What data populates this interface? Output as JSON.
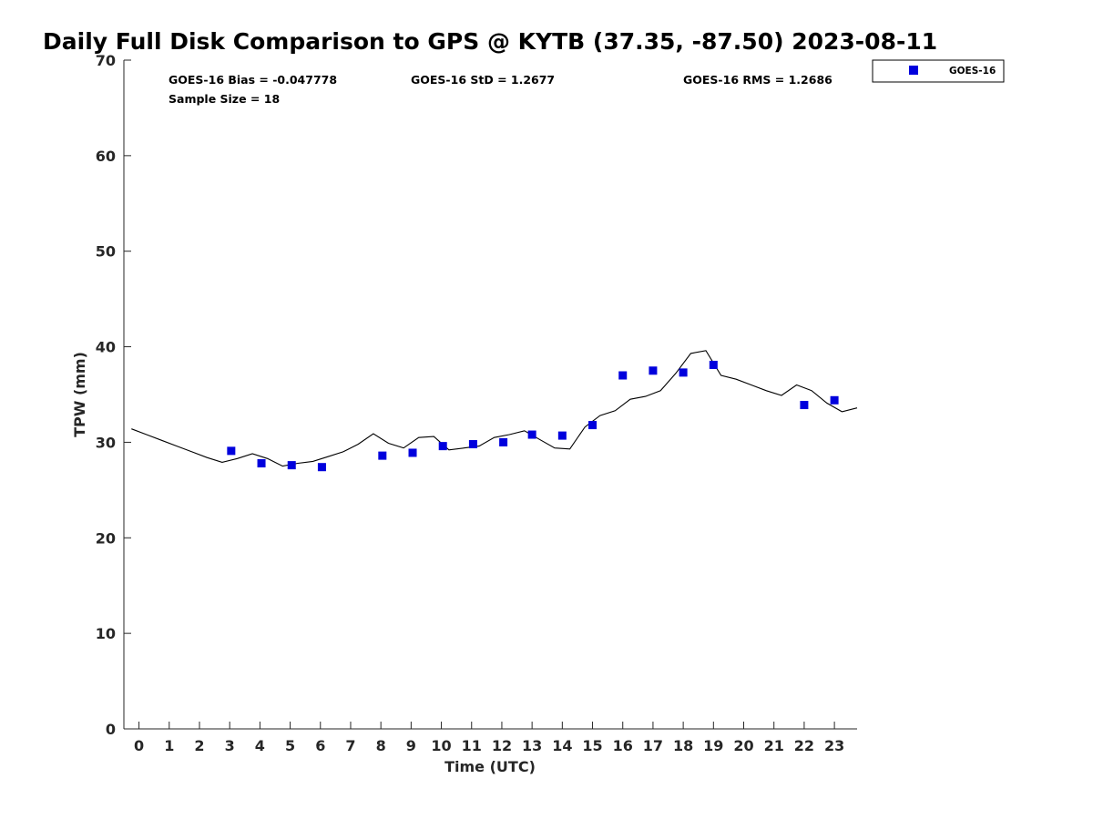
{
  "chart_data": {
    "type": "scatter",
    "title": "Daily Full Disk Comparison to GPS @ KYTB (37.35, -87.50) 2023-08-11",
    "xlabel": "Time (UTC)",
    "ylabel": "TPW (mm)",
    "xlim": [
      -0.5,
      23.75
    ],
    "ylim": [
      0,
      70
    ],
    "x_ticks": [
      0,
      1,
      2,
      3,
      4,
      5,
      6,
      7,
      8,
      9,
      10,
      11,
      12,
      13,
      14,
      15,
      16,
      17,
      18,
      19,
      20,
      21,
      22,
      23
    ],
    "y_ticks": [
      0,
      10,
      20,
      30,
      40,
      50,
      60,
      70
    ],
    "grid": false,
    "legend_position": "top-right outside",
    "stats": {
      "bias": "GOES-16 Bias = -0.047778",
      "std": "GOES-16 StD = 1.2677",
      "rms": "GOES-16 RMS = 1.2686",
      "sample_size": "Sample Size = 18"
    },
    "series": [
      {
        "name": "GOES-16",
        "kind": "scatter",
        "marker": "square",
        "color": "#0000dd",
        "x": [
          3.05,
          4.05,
          5.05,
          6.05,
          8.05,
          9.05,
          10.05,
          11.05,
          12.05,
          13.0,
          14.0,
          15.0,
          16.0,
          17.0,
          18.0,
          19.0,
          22.0,
          23.0
        ],
        "y": [
          29.1,
          27.8,
          27.6,
          27.4,
          28.6,
          28.9,
          29.6,
          29.8,
          30.0,
          30.8,
          30.7,
          31.8,
          37.0,
          37.5,
          37.3,
          38.1,
          33.9,
          34.4
        ]
      },
      {
        "kind": "line",
        "color": "#000000",
        "x": [
          -0.25,
          0.25,
          0.75,
          1.25,
          1.75,
          2.25,
          2.75,
          3.25,
          3.75,
          4.25,
          4.75,
          5.25,
          5.75,
          6.25,
          6.75,
          7.25,
          7.75,
          8.25,
          8.75,
          9.25,
          9.75,
          10.25,
          10.75,
          11.25,
          11.75,
          12.25,
          12.75,
          13.25,
          13.75,
          14.25,
          14.75,
          15.25,
          15.75,
          16.25,
          16.75,
          17.25,
          17.75,
          18.25,
          18.75,
          19.25,
          19.75,
          20.25,
          20.75,
          21.25,
          21.75,
          22.25,
          22.75,
          23.25,
          23.75
        ],
        "y": [
          31.4,
          30.8,
          30.2,
          29.6,
          29.0,
          28.4,
          27.9,
          28.3,
          28.8,
          28.3,
          27.5,
          27.8,
          28.0,
          28.5,
          29.0,
          29.8,
          30.9,
          29.9,
          29.4,
          30.5,
          30.6,
          29.2,
          29.4,
          29.6,
          30.5,
          30.8,
          31.2,
          30.3,
          29.4,
          29.3,
          31.6,
          32.8,
          33.3,
          34.5,
          34.8,
          35.4,
          37.2,
          39.3,
          39.6,
          37.0,
          36.6,
          36.0,
          35.4,
          34.9,
          36.0,
          35.4,
          34.1,
          33.2,
          33.6
        ]
      }
    ]
  }
}
